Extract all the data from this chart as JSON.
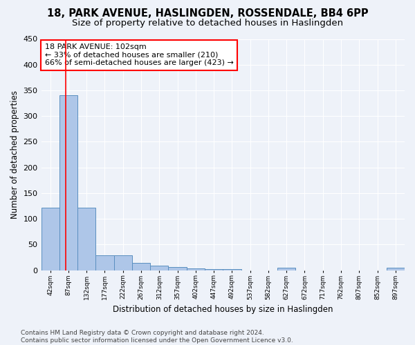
{
  "title1": "18, PARK AVENUE, HASLINGDEN, ROSSENDALE, BB4 6PP",
  "title2": "Size of property relative to detached houses in Haslingden",
  "xlabel": "Distribution of detached houses by size in Haslingden",
  "ylabel": "Number of detached properties",
  "footnote": "Contains HM Land Registry data © Crown copyright and database right 2024.\nContains public sector information licensed under the Open Government Licence v3.0.",
  "bin_edges": [
    42,
    87,
    132,
    177,
    222,
    267,
    312,
    357,
    402,
    447,
    492,
    537,
    582,
    627,
    672,
    717,
    762,
    807,
    852,
    897,
    942
  ],
  "bar_heights": [
    122,
    340,
    122,
    29,
    29,
    15,
    9,
    6,
    4,
    3,
    3,
    0,
    0,
    5,
    0,
    0,
    0,
    0,
    0,
    5
  ],
  "bar_color": "#aec6e8",
  "bar_edgecolor": "#5a8fc0",
  "vline_x": 102,
  "vline_color": "red",
  "annotation_line1": "18 PARK AVENUE: 102sqm",
  "annotation_line2": "← 33% of detached houses are smaller (210)",
  "annotation_line3": "66% of semi-detached houses are larger (423) →",
  "annotation_box_color": "white",
  "annotation_box_edgecolor": "red",
  "ylim": [
    0,
    450
  ],
  "yticks": [
    0,
    50,
    100,
    150,
    200,
    250,
    300,
    350,
    400,
    450
  ],
  "bg_color": "#eef2f9",
  "grid_color": "#ffffff",
  "title1_fontsize": 10.5,
  "title2_fontsize": 9.5,
  "xlabel_fontsize": 8.5,
  "ylabel_fontsize": 8.5,
  "annotation_fontsize": 8,
  "footnote_fontsize": 6.5
}
